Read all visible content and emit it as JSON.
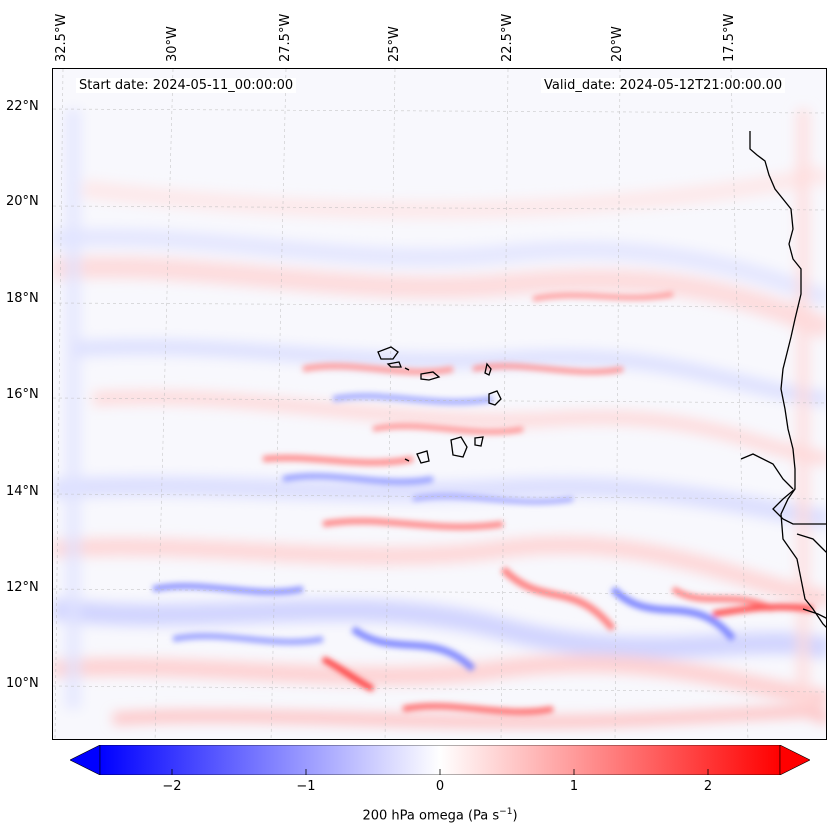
{
  "map": {
    "lon_labels": [
      "32.5°W",
      "30°W",
      "27.5°W",
      "25°W",
      "22.5°W",
      "20°W",
      "17.5°W"
    ],
    "lat_labels": [
      "22°N",
      "20°N",
      "18°N",
      "16°N",
      "14°N",
      "12°N",
      "10°N"
    ],
    "start_date": "Start date: 2024-05-11_00:00:00",
    "valid_date": "Valid_date: 2024-05-12T21:00:00.00",
    "field_variable": "omega",
    "colors": {
      "negative": "#0000ff",
      "zero": "#ffffff",
      "positive": "#ff0000",
      "coast": "#000000"
    }
  },
  "colorbar": {
    "ticks": [
      "−2",
      "−1",
      "0",
      "1",
      "2"
    ],
    "tick_values": [
      -2,
      -1,
      0,
      1,
      2
    ],
    "range": [
      -2.6,
      2.6
    ],
    "label_main": "200 hPa omega (Pa s",
    "label_sup": "−1",
    "label_end": ")"
  }
}
